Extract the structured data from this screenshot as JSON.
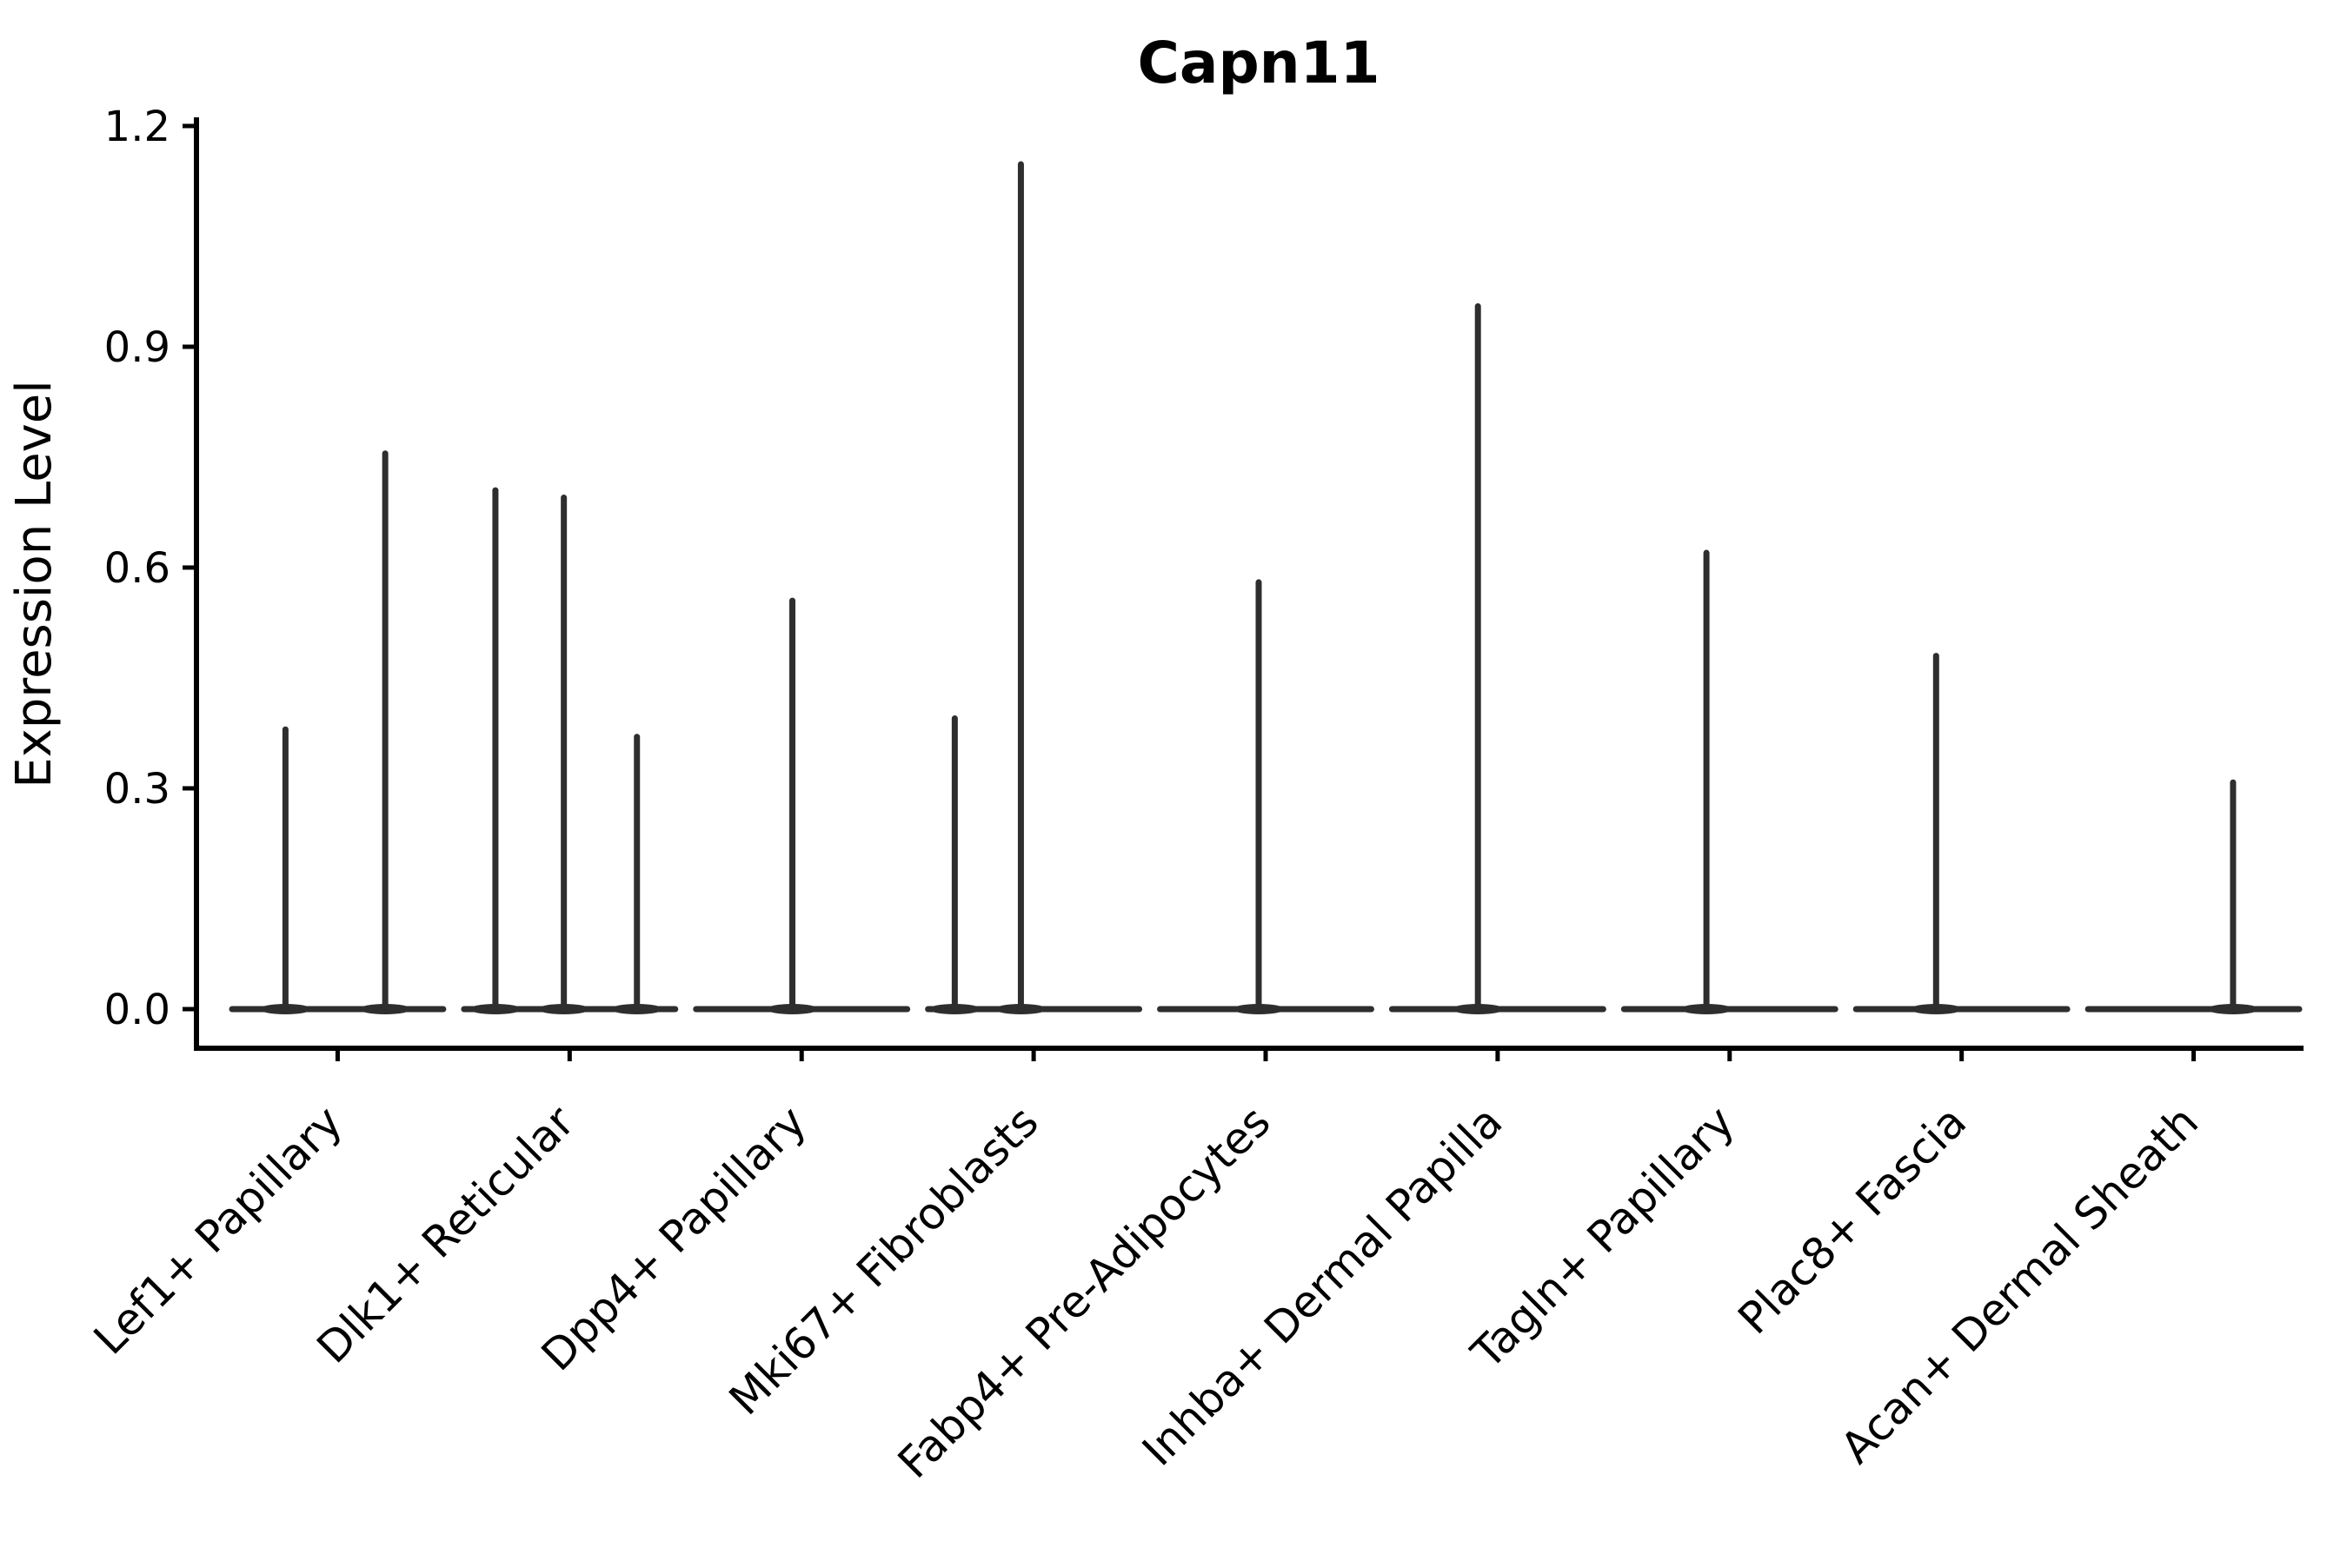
{
  "chart_data": {
    "type": "violin",
    "title": "Capn11",
    "ylabel": "Expression Level",
    "xlabel": "",
    "ylim": [
      0.0,
      1.2
    ],
    "yticks": [
      {
        "value": 0.0,
        "label": "0.0"
      },
      {
        "value": 0.3,
        "label": "0.3"
      },
      {
        "value": 0.6,
        "label": "0.6"
      },
      {
        "value": 0.9,
        "label": "0.9"
      },
      {
        "value": 1.2,
        "label": "1.2"
      }
    ],
    "grid": false,
    "legend": "none",
    "categories": [
      "Lef1+ Papillary",
      "Dlk1+ Reticular",
      "Dpp4+ Papillary",
      "Mki67+ Fibroblasts",
      "Fabp4+ Pre-Adipocytes",
      "Inhba+ Dermal Papilla",
      "Tagln+ Papillary",
      "Plac8+ Fascia",
      "Acan+ Dermal Sheath"
    ],
    "series": [
      {
        "category": "Lef1+ Papillary",
        "baseline_value": 0.0,
        "spikes": [
          {
            "offset": -0.225,
            "value": 0.38
          },
          {
            "offset": 0.205,
            "value": 0.755
          }
        ]
      },
      {
        "category": "Dlk1+ Reticular",
        "baseline_value": 0.0,
        "spikes": [
          {
            "offset": -0.32,
            "value": 0.705
          },
          {
            "offset": -0.025,
            "value": 0.695
          },
          {
            "offset": 0.29,
            "value": 0.37
          }
        ]
      },
      {
        "category": "Dpp4+ Papillary",
        "baseline_value": 0.0,
        "spikes": [
          {
            "offset": -0.04,
            "value": 0.555
          }
        ]
      },
      {
        "category": "Mki67+ Fibroblasts",
        "baseline_value": 0.0,
        "spikes": [
          {
            "offset": -0.34,
            "value": 0.395
          },
          {
            "offset": -0.055,
            "value": 1.148
          }
        ]
      },
      {
        "category": "Fabp4+ Pre-Adipocytes",
        "baseline_value": 0.0,
        "spikes": [
          {
            "offset": -0.03,
            "value": 0.58
          }
        ]
      },
      {
        "category": "Inhba+ Dermal Papilla",
        "baseline_value": 0.0,
        "spikes": [
          {
            "offset": -0.085,
            "value": 0.955
          }
        ]
      },
      {
        "category": "Tagln+ Papillary",
        "baseline_value": 0.0,
        "spikes": [
          {
            "offset": -0.1,
            "value": 0.62
          }
        ]
      },
      {
        "category": "Plac8+ Fascia",
        "baseline_value": 0.0,
        "spikes": [
          {
            "offset": -0.11,
            "value": 0.48
          }
        ]
      },
      {
        "category": "Acan+ Dermal Sheath",
        "baseline_value": 0.0,
        "spikes": [
          {
            "offset": 0.17,
            "value": 0.308
          }
        ]
      }
    ],
    "violin_relative_width": 0.91,
    "colors": {
      "violin_stroke": "#2e2e2e",
      "axis": "#000000",
      "text": "#000000",
      "background": "#ffffff"
    }
  }
}
